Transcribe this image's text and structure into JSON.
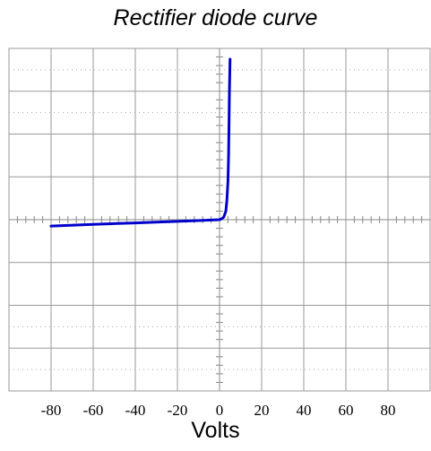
{
  "chart_data": {
    "type": "line",
    "title": "Rectifier diode curve",
    "xlabel": "Volts",
    "ylabel": "",
    "xlim": [
      -100,
      100
    ],
    "ylim": [
      -4,
      4
    ],
    "x_ticks": [
      "-80",
      "-60",
      "-40",
      "-20",
      "0",
      "20",
      "40",
      "60",
      "80"
    ],
    "grid": true,
    "series": [
      {
        "color": "#0000cc",
        "x": [
          -80,
          -60,
          -40,
          -20,
          -10,
          0,
          1,
          2,
          3,
          3.5,
          4,
          4.3,
          4.5,
          4.7,
          5
        ],
        "y": [
          -0.15,
          -0.11,
          -0.075,
          -0.04,
          -0.02,
          0,
          0.02,
          0.06,
          0.2,
          0.45,
          0.9,
          1.5,
          2.2,
          3.0,
          3.75
        ]
      }
    ]
  }
}
